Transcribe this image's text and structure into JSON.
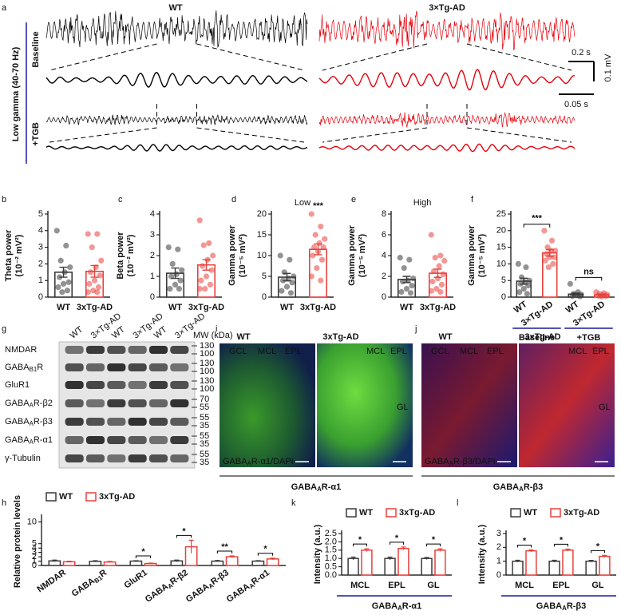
{
  "panel_labels": [
    "a",
    "b",
    "c",
    "d",
    "e",
    "f",
    "g",
    "h",
    "i",
    "j",
    "k",
    "l"
  ],
  "traces": {
    "wt": "WT",
    "tg": "3×Tg-AD",
    "band": "Low gamma (40-70 Hz)",
    "baseline": "Baseline",
    "tgb": "+TGB",
    "scale_time_long": "0.2 s",
    "scale_voltage": "0.1 mV",
    "scale_time_short": "0.05 s"
  },
  "chart_data": [
    {
      "type": "bar",
      "ylabel": [
        "Theta power",
        "(10⁻² mV²)"
      ],
      "categories": [
        "WT",
        "3xTg-AD"
      ],
      "colors": [
        "#3a3a3a",
        "#e8413c"
      ],
      "values": [
        1.5,
        1.55
      ],
      "errors": [
        0.3,
        0.35
      ],
      "points": [
        [
          4.0,
          3.1,
          2.2,
          1.8,
          1.5,
          1.2,
          0.9,
          0.8,
          0.6,
          0.4,
          0.3
        ],
        [
          3.8,
          3.8,
          3.0,
          2.2,
          1.8,
          1.5,
          1.3,
          1.0,
          0.8,
          0.6,
          0.4,
          0.3,
          0.3
        ]
      ],
      "ylim": [
        0,
        5
      ],
      "yticks": [
        0,
        1,
        2,
        3,
        4,
        5
      ]
    },
    {
      "type": "bar",
      "ylabel": [
        "Beta power",
        "(10⁻² mV²)"
      ],
      "categories": [
        "WT",
        "3xTg-AD"
      ],
      "colors": [
        "#3a3a3a",
        "#e8413c"
      ],
      "values": [
        1.15,
        1.55
      ],
      "errors": [
        0.25,
        0.25
      ],
      "points": [
        [
          2.4,
          2.3,
          1.6,
          1.3,
          1.1,
          1.0,
          0.8,
          0.6,
          0.4,
          0.4
        ],
        [
          3.7,
          2.6,
          2.5,
          2.0,
          1.8,
          1.5,
          1.3,
          1.0,
          0.8,
          0.6,
          0.4,
          0.4
        ]
      ],
      "ylim": [
        0,
        4
      ],
      "yticks": [
        0,
        1,
        2,
        3,
        4
      ]
    },
    {
      "type": "bar",
      "title": "Low",
      "ylabel": [
        "Gamma power",
        "(10⁻⁵ mV²)"
      ],
      "categories": [
        "WT",
        "3xTg-AD"
      ],
      "colors": [
        "#3a3a3a",
        "#e8413c"
      ],
      "values": [
        4.8,
        11.5
      ],
      "errors": [
        0.9,
        1.3
      ],
      "points": [
        [
          10,
          9,
          6,
          5,
          4.5,
          4,
          3.5,
          2.5,
          1.5,
          1
        ],
        [
          20,
          17,
          15,
          14,
          13,
          12,
          12,
          11,
          10,
          9,
          7,
          5,
          4
        ]
      ],
      "significance": [
        "***"
      ],
      "ylim": [
        0,
        20
      ],
      "yticks": [
        0,
        5,
        10,
        15,
        20
      ]
    },
    {
      "type": "bar",
      "title": "High",
      "ylabel": [
        "Gamma power",
        "(10⁻⁵ mV²)"
      ],
      "categories": [
        "WT",
        "3xTg-AD"
      ],
      "colors": [
        "#3a3a3a",
        "#e8413c"
      ],
      "values": [
        1.7,
        2.3
      ],
      "errors": [
        0.3,
        0.4
      ],
      "points": [
        [
          3.8,
          3.6,
          2.8,
          1.8,
          1.6,
          1.5,
          1.1,
          0.8,
          0.5,
          0.4
        ],
        [
          6,
          4,
          3.8,
          3.5,
          3,
          2.5,
          2.2,
          1.8,
          1.5,
          1.2,
          0.8,
          0.6,
          0.5
        ]
      ],
      "ylim": [
        0,
        8
      ],
      "yticks": [
        0,
        2,
        4,
        6,
        8
      ]
    },
    {
      "type": "bar",
      "ylabel": [
        "Gamma power",
        "(10⁻⁵ mV²)"
      ],
      "categories": [
        "WT",
        "3×Tg-AD",
        "WT",
        "3×Tg-AD"
      ],
      "colors": [
        "#3a3a3a",
        "#e8413c",
        "#3a3a3a",
        "#e8413c"
      ],
      "values": [
        4.8,
        13.3,
        0.9,
        0.7
      ],
      "errors": [
        0.9,
        1.0,
        0.3,
        0.2
      ],
      "points": [
        [
          10,
          9,
          6,
          5,
          4.5,
          4,
          3.5,
          2.5,
          1.5,
          1
        ],
        [
          20,
          17,
          15,
          14,
          14,
          13,
          12,
          12,
          11,
          10,
          9
        ],
        [
          4,
          1.5,
          1,
          0.8,
          0.5,
          0.3,
          0.2
        ],
        [
          1.5,
          1.2,
          1,
          0.8,
          0.6,
          0.4,
          0.3,
          0.2
        ]
      ],
      "groups": [
        "Baseline",
        "+TGB"
      ],
      "significance": [
        "***",
        "ns"
      ],
      "ylim": [
        0,
        25
      ],
      "yticks": [
        0,
        5,
        10,
        15,
        20,
        25
      ]
    },
    {
      "type": "grouped_bar",
      "ylabel": [
        "Relative protein levels"
      ],
      "categories": [
        "NMDAR",
        {
          "pre": "GABA",
          "sub": "B1",
          "post": "R"
        },
        "GluR1",
        {
          "pre": "GABA",
          "sub": "A",
          "post": "R-β2"
        },
        {
          "pre": "GABA",
          "sub": "A",
          "post": "R-β3"
        },
        {
          "pre": "GABA",
          "sub": "A",
          "post": "R-α1"
        }
      ],
      "series": [
        {
          "name": "WT",
          "color": "#3a3a3a",
          "values": [
            1.05,
            0.95,
            1.0,
            1.05,
            1.0,
            1.0
          ],
          "errors": [
            0.2,
            0.15,
            0.1,
            0.2,
            0.15,
            0.1
          ]
        },
        {
          "name": "3xTg-AD",
          "color": "#e8413c",
          "values": [
            0.85,
            0.8,
            0.45,
            4.3,
            2.0,
            1.5
          ],
          "errors": [
            0.15,
            0.15,
            0.1,
            1.5,
            0.2,
            0.2
          ]
        }
      ],
      "significance": [
        null,
        null,
        "*",
        "*",
        "**",
        "*"
      ],
      "ylim": [
        0,
        11
      ],
      "yticks": [
        0,
        1,
        2,
        3,
        4,
        5,
        10
      ]
    },
    {
      "type": "grouped_bar",
      "ylabel": [
        "Intensity (a.u.)"
      ],
      "categories": [
        "MCL",
        "EPL",
        "GL"
      ],
      "series": [
        {
          "name": "WT",
          "color": "#3a3a3a",
          "values": [
            1.0,
            1.0,
            1.0
          ],
          "errors": [
            0.08,
            0.08,
            0.06
          ]
        },
        {
          "name": "3xTg-AD",
          "color": "#e8413c",
          "values": [
            1.5,
            1.6,
            1.5
          ],
          "errors": [
            0.08,
            0.09,
            0.08
          ]
        }
      ],
      "significance": [
        "*",
        "*",
        "*"
      ],
      "group_label": {
        "pre": "GABA",
        "sub": "A",
        "post": "R-α1"
      },
      "ylim": [
        0,
        2.5
      ],
      "yticks": [
        {
          "value": 0,
          "label": "0.0"
        },
        0.5,
        {
          "value": 1,
          "label": "1.0"
        },
        1.5,
        {
          "value": 2,
          "label": "2.0"
        },
        2.5
      ]
    },
    {
      "type": "grouped_bar",
      "ylabel": [
        "Intensity (a.u.)"
      ],
      "categories": [
        "MCL",
        "EPL",
        "GL"
      ],
      "series": [
        {
          "name": "WT",
          "color": "#3a3a3a",
          "values": [
            1.0,
            1.0,
            1.0
          ],
          "errors": [
            0.07,
            0.07,
            0.06
          ]
        },
        {
          "name": "3xTg-AD",
          "color": "#e8413c",
          "values": [
            1.75,
            1.8,
            1.35
          ],
          "errors": [
            0.07,
            0.08,
            0.07
          ]
        }
      ],
      "significance": [
        "*",
        "*",
        "*"
      ],
      "group_label": {
        "pre": "GABA",
        "sub": "A",
        "post": "R-β3"
      },
      "ylim": [
        0,
        3
      ],
      "yticks": [
        0,
        1,
        2,
        3
      ]
    }
  ],
  "western_blot": {
    "lanes": [
      "WT",
      "3×Tg-AD",
      "WT",
      "3×Tg-AD",
      "WT",
      "3×Tg-AD"
    ],
    "mw_label": "MW (kDa)",
    "rows": [
      {
        "protein": "NMDAR",
        "mw": [
          130,
          100
        ]
      },
      {
        "protein": {
          "pre": "GABA",
          "sub": "B1",
          "post": "R"
        },
        "mw": [
          130,
          100
        ]
      },
      {
        "protein": "GluR1",
        "mw": [
          130,
          100
        ]
      },
      {
        "protein": {
          "pre": "GABA",
          "sub": "A",
          "post": "R-β2"
        },
        "mw": [
          70,
          55
        ]
      },
      {
        "protein": {
          "pre": "GABA",
          "sub": "A",
          "post": "R-β3"
        },
        "mw": [
          55,
          35
        ]
      },
      {
        "protein": {
          "pre": "GABA",
          "sub": "A",
          "post": "R-α1"
        },
        "mw": [
          55,
          35
        ]
      },
      {
        "protein": "γ-Tubulin",
        "mw": [
          55,
          35
        ]
      }
    ]
  },
  "immunofluorescence": [
    {
      "conditions": [
        "WT",
        "3xTg-AD"
      ],
      "regions": [
        "GCL",
        "MCL",
        "EPL",
        "GL"
      ],
      "stain": {
        "pre": "GABA",
        "sub": "A",
        "post": "R-α1/DAPI"
      },
      "caption": {
        "pre": "GABA",
        "sub": "A",
        "post": "R-α1"
      }
    },
    {
      "conditions": [
        "WT",
        "3xTg-AD"
      ],
      "regions": [
        "GCL",
        "MCL",
        "EPL",
        "GL"
      ],
      "stain": {
        "pre": "GABA",
        "sub": "A",
        "post": "R-β3/DAPI"
      },
      "caption": {
        "pre": "GABA",
        "sub": "A",
        "post": "R-β3"
      }
    }
  ]
}
